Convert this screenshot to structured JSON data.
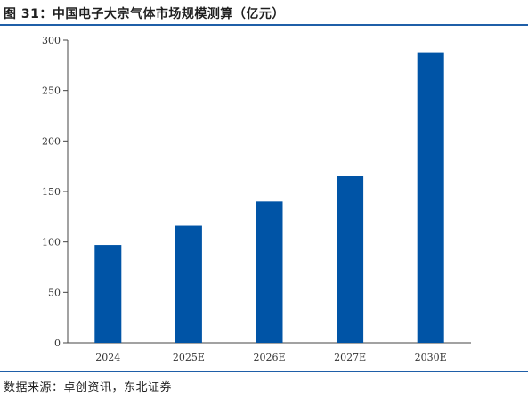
{
  "header": {
    "title": "图 31：中国电子大宗气体市场规模测算（亿元）"
  },
  "footer": {
    "source": "数据来源：卓创资讯，东北证券"
  },
  "colors": {
    "bar": "#0054a6",
    "accent_rule": "#1f5fa8",
    "axis": "#444444"
  },
  "chart_data": {
    "type": "bar",
    "title": "",
    "xlabel": "",
    "ylabel": "",
    "categories": [
      "2024",
      "2025E",
      "2026E",
      "2027E",
      "2030E"
    ],
    "values": [
      97,
      116,
      140,
      165,
      288
    ],
    "ylim": [
      0,
      300
    ],
    "yticks": [
      "0",
      "50",
      "100",
      "150",
      "200",
      "250",
      "300"
    ],
    "grid": false,
    "legend": "none"
  }
}
